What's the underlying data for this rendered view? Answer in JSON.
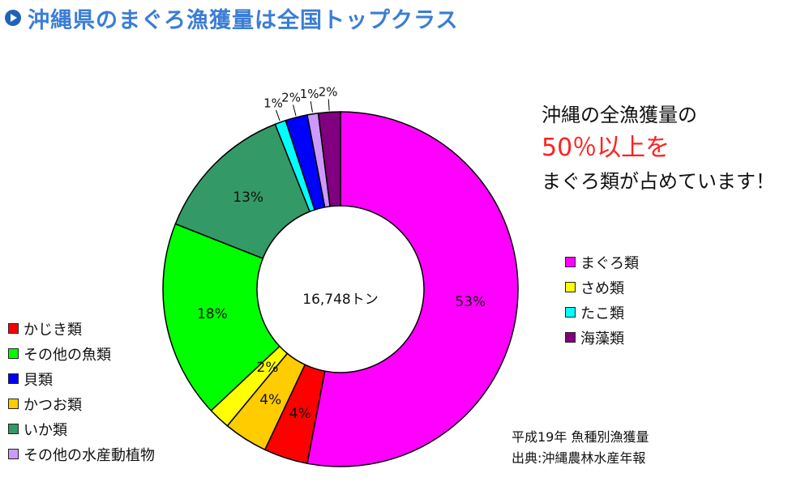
{
  "header": {
    "title": "沖縄県のまぐろ漁獲量は全国トップクラス"
  },
  "message": {
    "line1": "沖縄の全漁獲量の",
    "line2": "50％以上を",
    "line3": "まぐろ類が占めています！"
  },
  "source": {
    "line1": "平成19年 魚種別漁獲量",
    "line2": "出典:沖縄農林水産年報"
  },
  "chart_data": {
    "type": "pie",
    "center_label": "16,748トン",
    "slices": [
      {
        "label": "まぐろ類",
        "value": 53,
        "value_label": "53%",
        "color": "#ff00ff"
      },
      {
        "label": "かじき類",
        "value": 4,
        "value_label": "4%",
        "color": "#ff0000"
      },
      {
        "label": "かつお類",
        "value": 4,
        "value_label": "4%",
        "color": "#ffcc00"
      },
      {
        "label": "さめ類",
        "value": 2,
        "value_label": "2%",
        "color": "#ffff00"
      },
      {
        "label": "その他の魚類",
        "value": 18,
        "value_label": "18%",
        "color": "#00ff00"
      },
      {
        "label": "いか類",
        "value": 13,
        "value_label": "13%",
        "color": "#339966"
      },
      {
        "label": "たこ類",
        "value": 1,
        "value_label": "1%",
        "color": "#00ffff"
      },
      {
        "label": "貝類",
        "value": 2,
        "value_label": "2%",
        "color": "#0000ff"
      },
      {
        "label": "その他の水産動植物",
        "value": 1,
        "value_label": "1%",
        "color": "#cc99ff"
      },
      {
        "label": "海藻類",
        "value": 2,
        "value_label": "2%",
        "color": "#800080"
      }
    ],
    "legend_left": [
      "かじき類",
      "その他の魚類",
      "貝類",
      "かつお類",
      "いか類",
      "その他の水産動植物"
    ],
    "legend_right": [
      "まぐろ類",
      "さめ類",
      "たこ類",
      "海藻類"
    ]
  }
}
